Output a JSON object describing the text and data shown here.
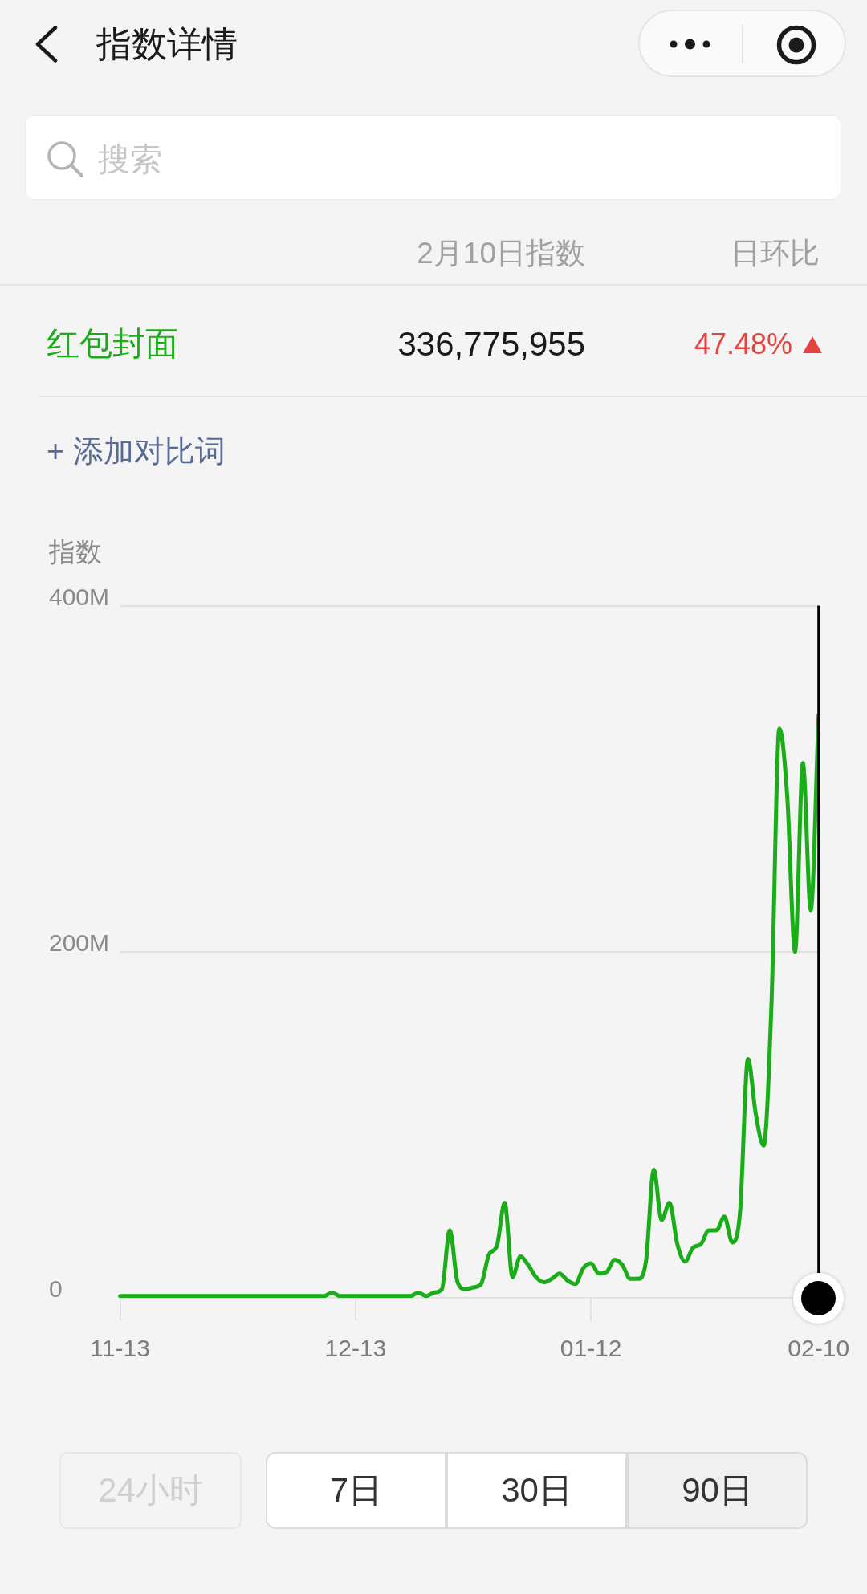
{
  "chart_data": {
    "type": "line",
    "title": "指数详情",
    "ylabel": "指数",
    "annotations": [
      "搜索",
      "2月10日指数",
      "日环比",
      "336,775,955",
      "47.48%",
      "+ 添加对比词",
      "24小时",
      "7日",
      "30日",
      "90日"
    ],
    "categories": [
      "11-13",
      null,
      null,
      null,
      null,
      null,
      null,
      null,
      null,
      null,
      null,
      null,
      null,
      null,
      null,
      null,
      null,
      null,
      null,
      null,
      null,
      null,
      null,
      null,
      null,
      null,
      null,
      null,
      null,
      null,
      "12-13",
      null,
      null,
      null,
      null,
      null,
      null,
      null,
      null,
      null,
      null,
      null,
      null,
      null,
      null,
      null,
      null,
      null,
      null,
      null,
      null,
      null,
      null,
      null,
      null,
      null,
      null,
      null,
      null,
      null,
      "01-12",
      null,
      null,
      null,
      null,
      null,
      null,
      null,
      null,
      null,
      null,
      null,
      null,
      null,
      null,
      null,
      null,
      null,
      null,
      null,
      null,
      null,
      null,
      null,
      null,
      null,
      null,
      null,
      null,
      "02-10"
    ],
    "series": [
      {
        "name": "红包封面",
        "color": "#1aad19",
        "values": [
          1,
          1,
          1,
          1,
          1,
          1,
          1,
          1,
          1,
          1,
          1,
          1,
          1,
          1,
          1,
          1,
          1,
          1,
          1,
          1,
          1,
          1,
          1,
          1,
          1,
          1,
          1,
          3,
          1,
          1,
          1,
          1,
          1,
          1,
          1,
          1,
          1,
          1,
          3,
          1,
          3,
          5,
          39,
          9,
          5,
          6,
          8,
          25,
          30,
          55,
          12,
          24,
          19,
          12,
          9,
          11,
          14,
          10,
          8,
          17,
          20,
          14,
          15,
          22,
          19,
          11,
          11,
          21,
          74,
          45,
          55,
          31,
          21,
          29,
          31,
          39,
          39,
          47,
          32,
          50,
          138,
          106,
          88,
          170,
          329,
          290,
          200,
          309,
          224,
          336.775955
        ]
      }
    ],
    "ylim": [
      0,
      400
    ],
    "yticks": [
      0,
      {
        "value": 200,
        "label": "200M"
      },
      {
        "value": 400,
        "label": "400M"
      }
    ],
    "grid": "y",
    "ref_lines": [
      {
        "axis": "x",
        "value": "02-10",
        "color": "#000000"
      }
    ]
  }
}
